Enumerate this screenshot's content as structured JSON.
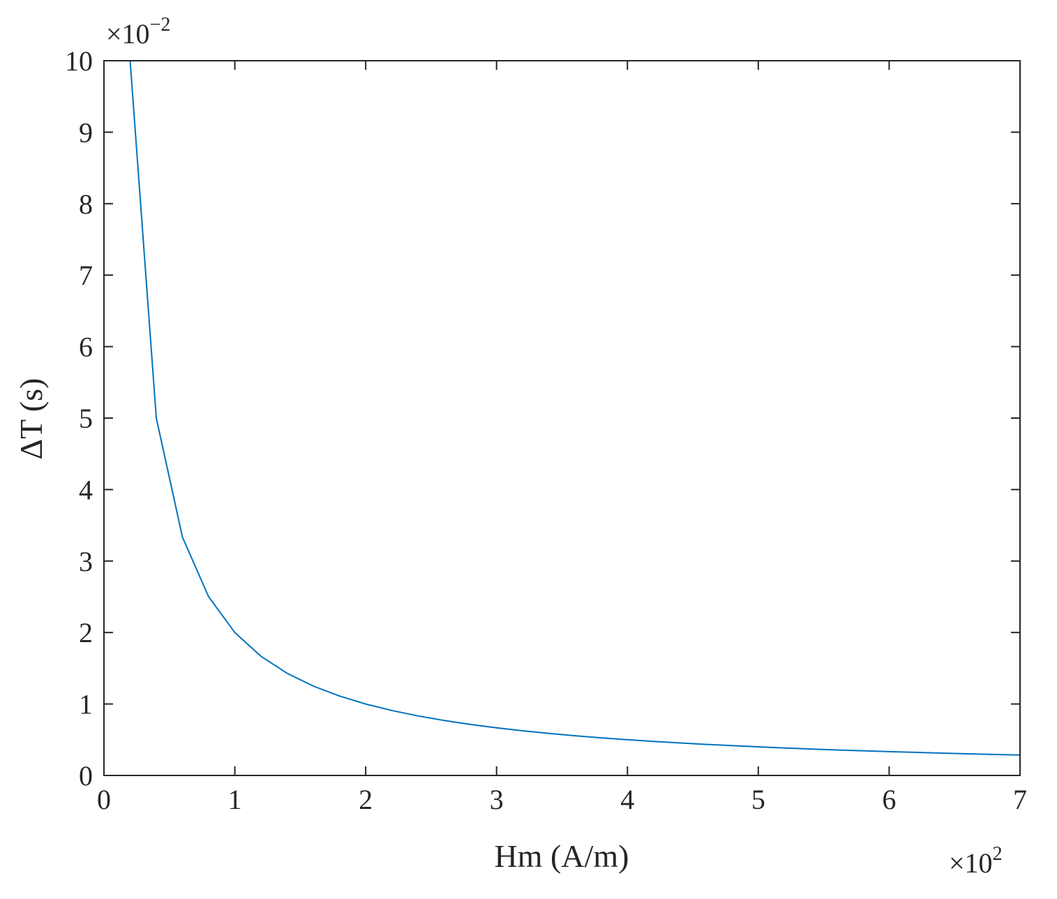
{
  "chart_data": {
    "type": "line",
    "title": "",
    "xlabel": "Hm (A/m)",
    "ylabel": "ΔT (s)",
    "x_multiplier_text": "×10",
    "x_multiplier_exp": "2",
    "y_multiplier_text": "×10",
    "y_multiplier_exp": "−2",
    "xlim": [
      0,
      7
    ],
    "ylim": [
      0,
      10
    ],
    "x_ticks": [
      0,
      1,
      2,
      3,
      4,
      5,
      6,
      7
    ],
    "y_ticks": [
      0,
      1,
      2,
      3,
      4,
      5,
      6,
      7,
      8,
      9,
      10
    ],
    "x_tick_labels": [
      "0",
      "1",
      "2",
      "3",
      "4",
      "5",
      "6",
      "7"
    ],
    "y_tick_labels": [
      "0",
      "1",
      "2",
      "3",
      "4",
      "5",
      "6",
      "7",
      "8",
      "9",
      "10"
    ],
    "grid": false,
    "series": [
      {
        "color": "#0072BD",
        "x": [
          0.2,
          0.4,
          0.6,
          0.8,
          1.0,
          1.2,
          1.4,
          1.6,
          1.8,
          2.0,
          2.2,
          2.4,
          2.6,
          2.8,
          3.0,
          3.2,
          3.4,
          3.6,
          3.8,
          4.0,
          4.2,
          4.4,
          4.6,
          4.8,
          5.0,
          5.2,
          5.4,
          5.6,
          5.8,
          6.0,
          6.2,
          6.4,
          6.6,
          6.8,
          7.0
        ],
        "y": [
          10.0,
          5.0,
          3.333,
          2.5,
          2.0,
          1.667,
          1.429,
          1.25,
          1.111,
          1.0,
          0.909,
          0.833,
          0.769,
          0.714,
          0.667,
          0.625,
          0.588,
          0.556,
          0.526,
          0.5,
          0.476,
          0.455,
          0.435,
          0.417,
          0.4,
          0.385,
          0.37,
          0.357,
          0.345,
          0.333,
          0.323,
          0.313,
          0.303,
          0.294,
          0.286
        ]
      }
    ]
  }
}
